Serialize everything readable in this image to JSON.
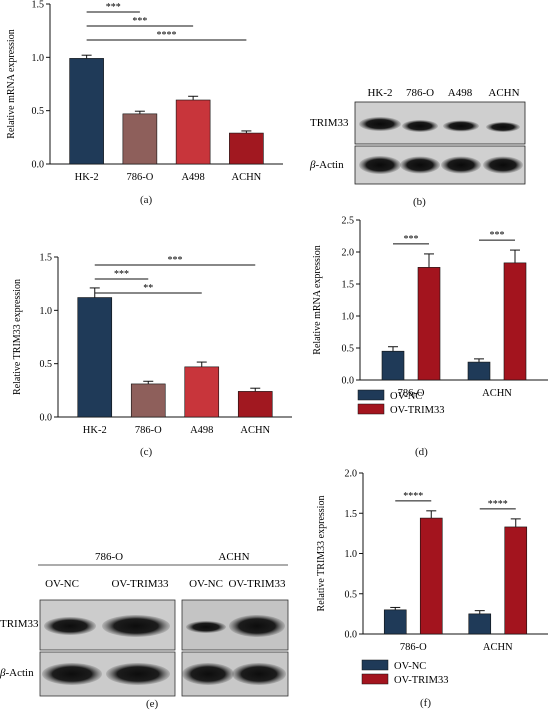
{
  "colors": {
    "hk2": "#1f3a58",
    "c786": "#8e5f5b",
    "a498": "#c8353b",
    "achn": "#a11820",
    "ovnc": "#1f3a58",
    "ovtrim": "#a3141e",
    "axis": "#111111"
  },
  "chart_data": [
    {
      "panel": "(a)",
      "type": "bar",
      "ylabel": "Relative mRNA expression",
      "ylim": [
        0,
        1.5
      ],
      "yticks": [
        "0.0",
        "0.5",
        "1.0",
        "1.5"
      ],
      "categories": [
        "HK-2",
        "786-O",
        "A498",
        "ACHN"
      ],
      "values": [
        0.99,
        0.47,
        0.6,
        0.29
      ],
      "errors": [
        0.03,
        0.025,
        0.035,
        0.02
      ],
      "significance": [
        {
          "from": "HK-2",
          "to": "786-O",
          "label": "***"
        },
        {
          "from": "HK-2",
          "to": "A498",
          "label": "***"
        },
        {
          "from": "HK-2",
          "to": "ACHN",
          "label": "****"
        }
      ]
    },
    {
      "panel": "(c)",
      "type": "bar",
      "ylabel": "Relative TRIM33 expression",
      "ylim": [
        0,
        1.5
      ],
      "yticks": [
        "0.0",
        "0.5",
        "1.0",
        "1.5"
      ],
      "categories": [
        "HK-2",
        "786-O",
        "A498",
        "ACHN"
      ],
      "values": [
        1.12,
        0.31,
        0.47,
        0.24
      ],
      "errors": [
        0.09,
        0.025,
        0.045,
        0.03
      ],
      "significance": [
        {
          "from": "HK-2",
          "to": "786-O",
          "label": "***"
        },
        {
          "from": "HK-2",
          "to": "A498",
          "label": "**"
        },
        {
          "from": "HK-2",
          "to": "ACHN",
          "label": "***"
        }
      ]
    },
    {
      "panel": "(d)",
      "type": "bar",
      "ylabel": "Relative mRNA expression",
      "ylim": [
        0,
        2.5
      ],
      "yticks": [
        "0.0",
        "0.5",
        "1.0",
        "1.5",
        "2.0",
        "2.5"
      ],
      "categories": [
        "786-O",
        "ACHN"
      ],
      "series": [
        {
          "name": "OV-NC",
          "values": [
            0.45,
            0.28
          ],
          "errors": [
            0.07,
            0.05
          ]
        },
        {
          "name": "OV-TRIM33",
          "values": [
            1.76,
            1.83
          ],
          "errors": [
            0.21,
            0.2
          ]
        }
      ],
      "significance": [
        {
          "category": "786-O",
          "label": "***"
        },
        {
          "category": "ACHN",
          "label": "***"
        }
      ],
      "legend": [
        "OV-NC",
        "OV-TRIM33"
      ]
    },
    {
      "panel": "(f)",
      "type": "bar",
      "ylabel": "Relative TRIM33 expression",
      "ylim": [
        0,
        2.0
      ],
      "yticks": [
        "0.0",
        "0.5",
        "1.0",
        "1.5",
        "2.0"
      ],
      "categories": [
        "786-O",
        "ACHN"
      ],
      "series": [
        {
          "name": "OV-NC",
          "values": [
            0.3,
            0.25
          ],
          "errors": [
            0.03,
            0.04
          ]
        },
        {
          "name": "OV-TRIM33",
          "values": [
            1.44,
            1.33
          ],
          "errors": [
            0.09,
            0.1
          ]
        }
      ],
      "significance": [
        {
          "category": "786-O",
          "label": "****"
        },
        {
          "category": "ACHN",
          "label": "****"
        }
      ],
      "legend": [
        "OV-NC",
        "OV-TRIM33"
      ]
    }
  ],
  "blot_b": {
    "lanes": [
      "HK-2",
      "786-O",
      "A498",
      "ACHN"
    ],
    "rows": [
      "TRIM33",
      "β-Actin"
    ],
    "row_label_beta": "β",
    "row_label_actin": "-Actin",
    "panel_label": "(b)"
  },
  "blot_e": {
    "groups": [
      "786-O",
      "ACHN"
    ],
    "lanes": [
      "OV-NC",
      "OV-TRIM33",
      "OV-NC",
      "OV-TRIM33"
    ],
    "rows": [
      "TRIM33",
      "β-Actin"
    ],
    "row_label_beta": "β",
    "row_label_actin": "-Actin",
    "panel_label": "(e)"
  },
  "labels": {
    "a": "(a)",
    "b": "(b)",
    "c": "(c)",
    "d": "(d)",
    "e": "(e)",
    "f": "(f)"
  }
}
